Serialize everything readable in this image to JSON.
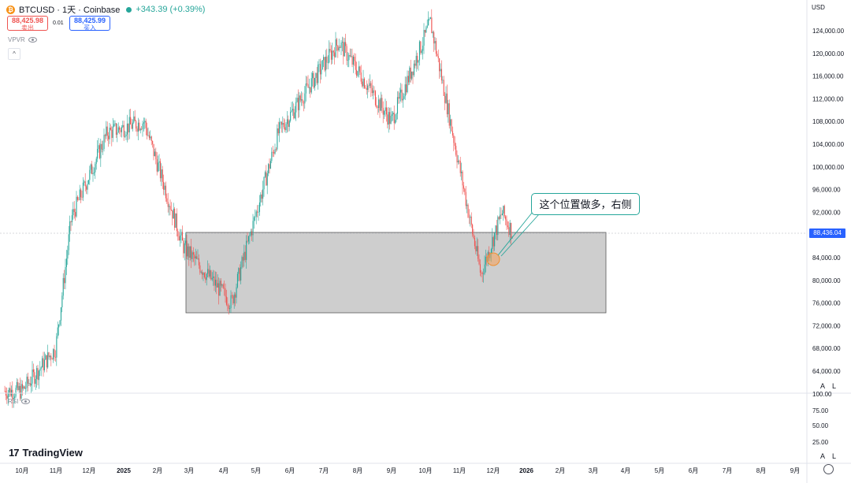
{
  "symbol": {
    "icon": "bitcoin-icon",
    "title": "BTCUSD · 1天 · Coinbase",
    "change": "+343.39 (+0.39%)"
  },
  "trade": {
    "sell_price": "88,425.98",
    "sell_label": "卖出",
    "spread": "0.01",
    "buy_price": "88,425.99",
    "buy_label": "买入"
  },
  "indicators": {
    "vpvr": "VPVR",
    "rsi": "RSI",
    "rsi_ticks": [
      "100.00",
      "75.00",
      "50.00",
      "25.00"
    ]
  },
  "price_axis": {
    "currency": "USD",
    "current_price_label": "88,436.04",
    "al_top": [
      "A",
      "L"
    ],
    "al_bottom": [
      "A",
      "L"
    ]
  },
  "annotation": {
    "text": "这个位置做多，右侧"
  },
  "logo": {
    "text": "TradingView"
  },
  "colors": {
    "up": "#26a69a",
    "down": "#ef5350",
    "accent": "#2962ff",
    "zone_fill": "#c9c9c9",
    "marker": "#f6a05a"
  },
  "chart_data": {
    "type": "candlestick",
    "ylim": [
      60000,
      126000
    ],
    "y_ticks": [
      "124,000.00",
      "120,000.00",
      "116,000.00",
      "112,000.00",
      "108,000.00",
      "104,000.00",
      "100,000.00",
      "96,000.00",
      "92,000.00",
      "88,000.00",
      "84,000.00",
      "80,000.00",
      "76,000.00",
      "72,000.00",
      "68,000.00",
      "64,000.00"
    ],
    "x_ticks": [
      "10月",
      "11月",
      "12月",
      "2025",
      "2月",
      "3月",
      "4月",
      "5月",
      "6月",
      "7月",
      "8月",
      "9月",
      "10月",
      "11月",
      "12月",
      "2026",
      "2月",
      "3月",
      "4月",
      "5月",
      "6月",
      "7月",
      "8月",
      "9月"
    ],
    "key_prices": [
      {
        "date": "2024-10",
        "price": 60500
      },
      {
        "date": "2024-11",
        "price": 68000
      },
      {
        "date": "2024-11-15",
        "price": 91000
      },
      {
        "date": "2024-12-17",
        "price": 106000
      },
      {
        "date": "2025-01-20",
        "price": 108000
      },
      {
        "date": "2025-02-25",
        "price": 86000
      },
      {
        "date": "2025-04-08",
        "price": 76000
      },
      {
        "date": "2025-05-20",
        "price": 106000
      },
      {
        "date": "2025-07-14",
        "price": 122000
      },
      {
        "date": "2025-09-01",
        "price": 108000
      },
      {
        "date": "2025-10-06",
        "price": 125500
      },
      {
        "date": "2025-11-21",
        "price": 81000
      },
      {
        "date": "2025-12-10",
        "price": 92000
      },
      {
        "date": "2025-12-19",
        "price": 88436
      }
    ],
    "support_zone": {
      "from": "2025-02",
      "to": "2026-03",
      "top": 88000,
      "bottom": 74500
    },
    "marker": {
      "date": "2025-12",
      "price": 84000
    }
  }
}
